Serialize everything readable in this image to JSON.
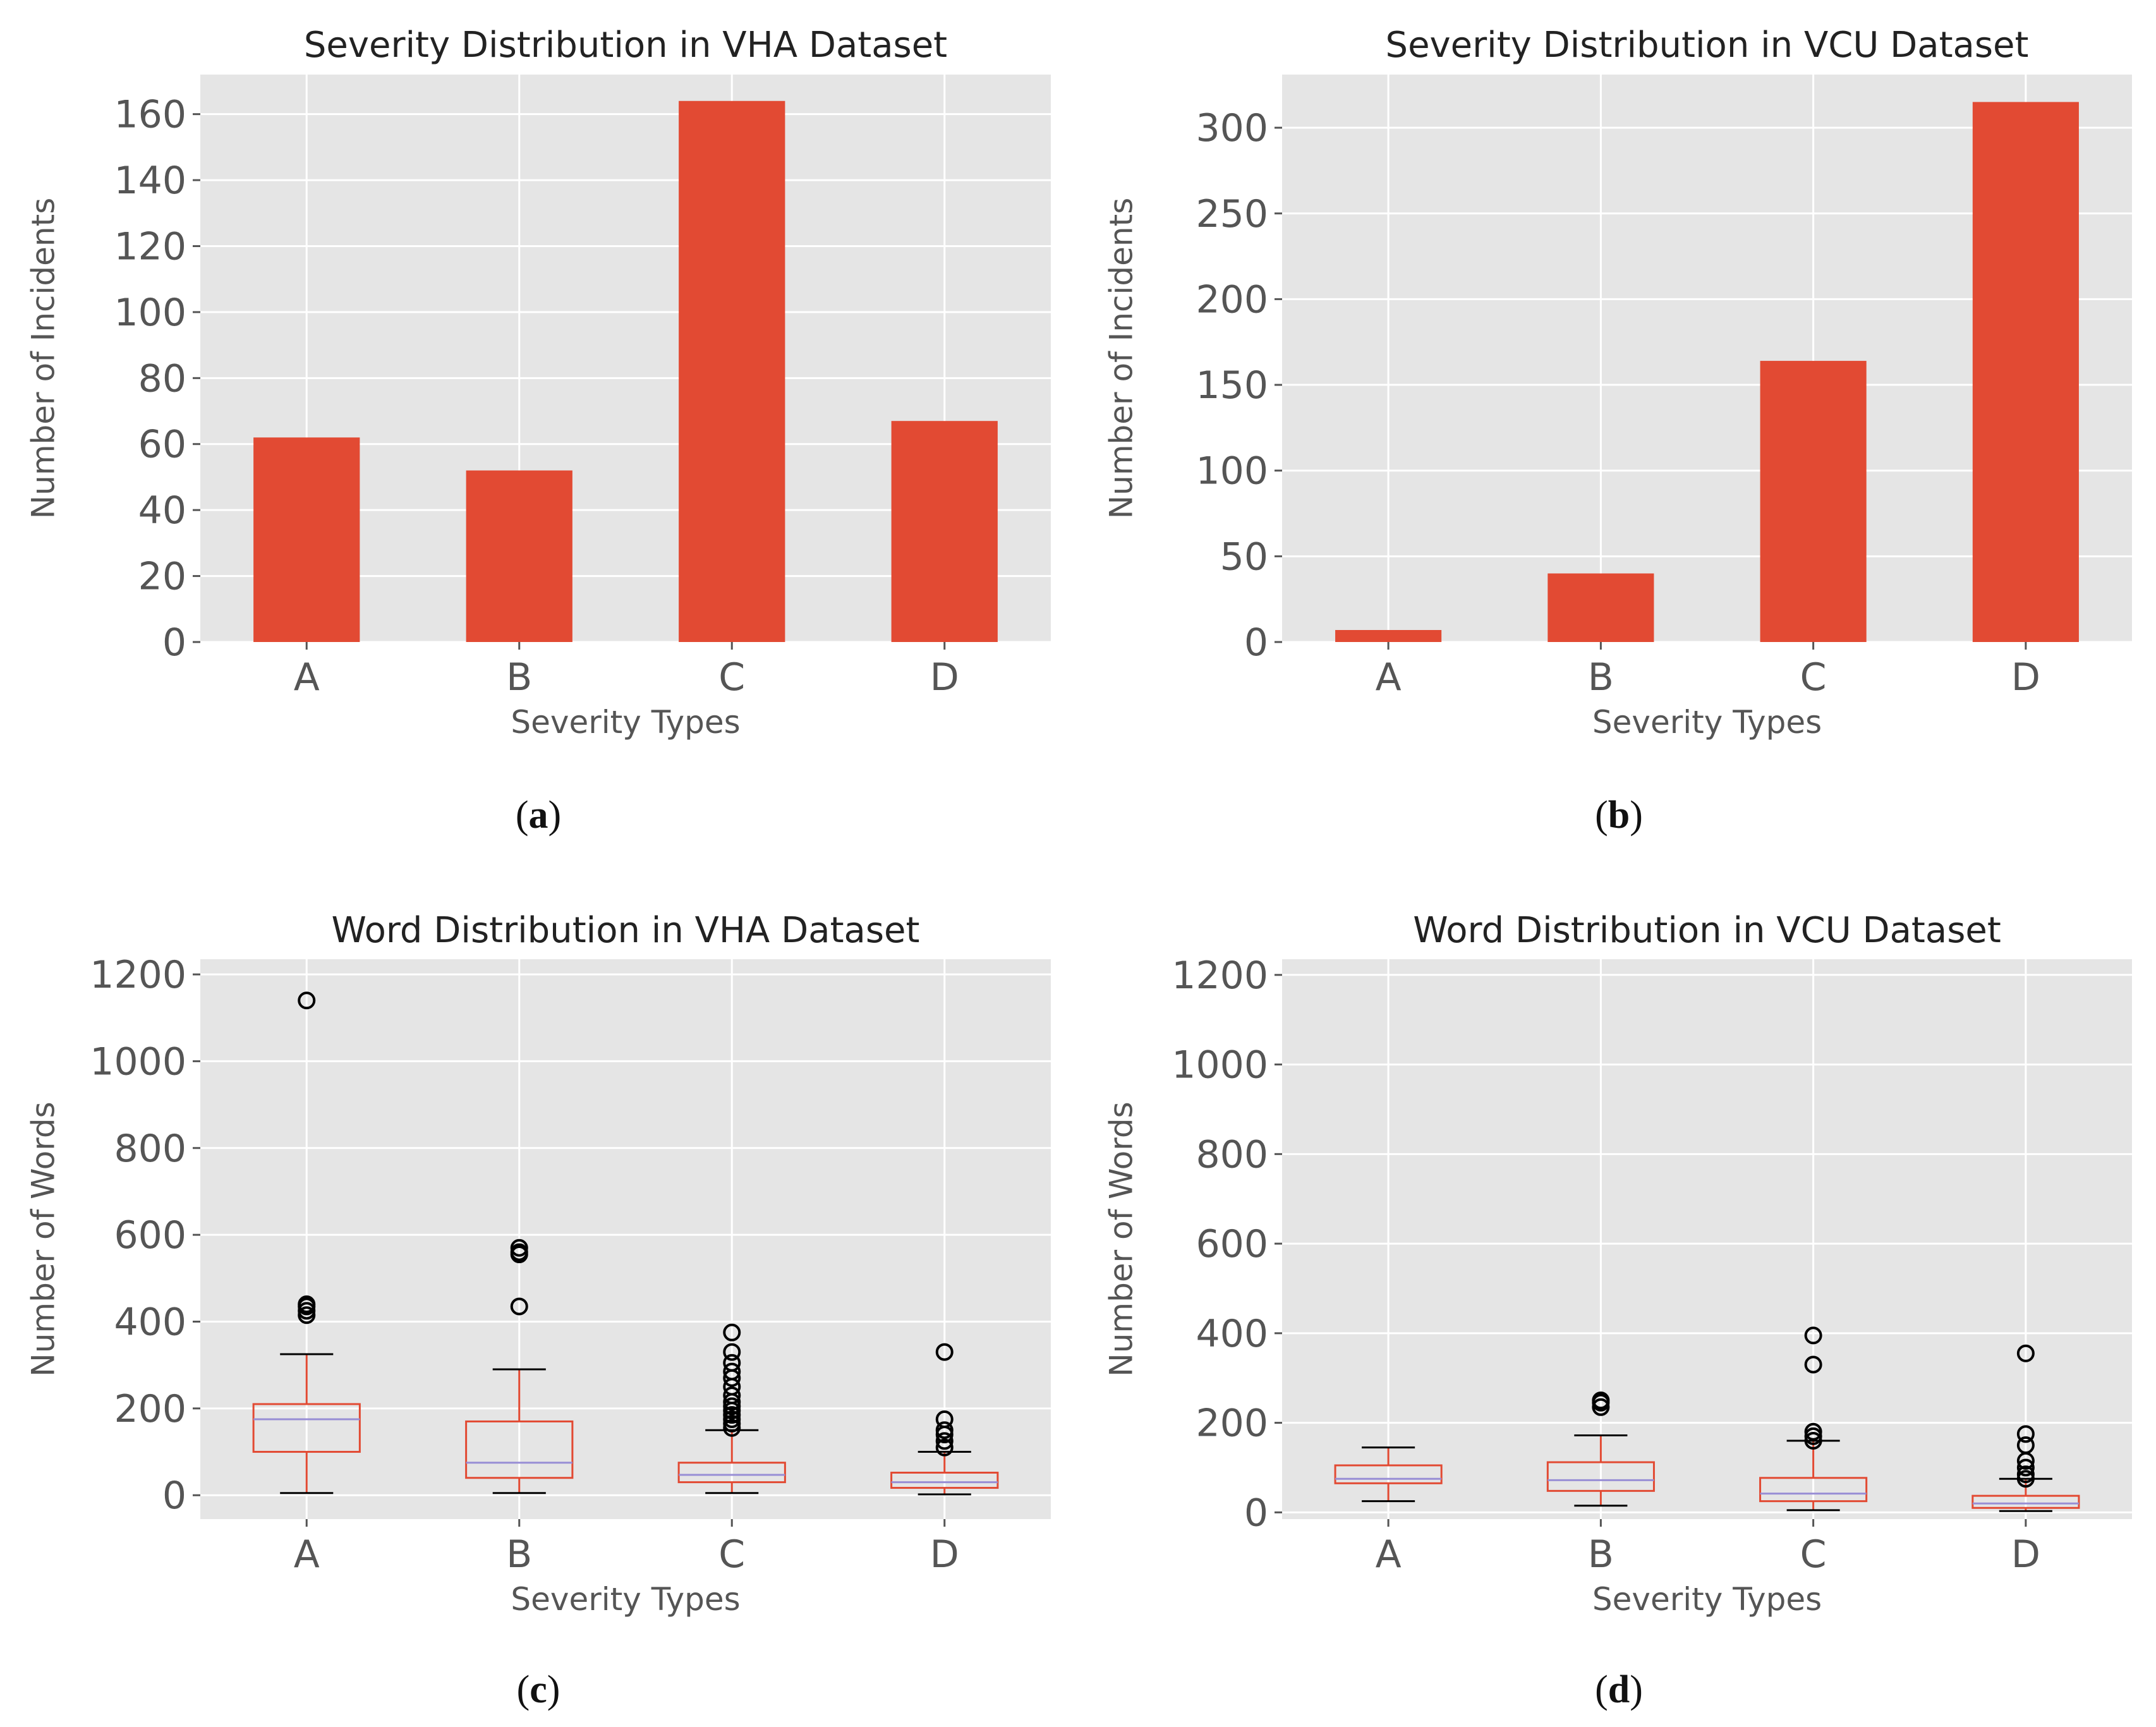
{
  "figure": {
    "captions": [
      {
        "open": "(",
        "letter": "a",
        "close": ")"
      },
      {
        "open": "(",
        "letter": "b",
        "close": ")"
      },
      {
        "open": "(",
        "letter": "c",
        "close": ")"
      },
      {
        "open": "(",
        "letter": "d",
        "close": ")"
      }
    ]
  },
  "colors": {
    "bar": "#E24A33",
    "plot_bg": "#E5E5E5",
    "grid": "#FFFFFF",
    "box": "#E24A33",
    "median": "#8EBA42",
    "median_alt": "#988ED5",
    "whisker": "#000000"
  },
  "chart_data": [
    {
      "type": "bar",
      "title": "Severity Distribution in VHA Dataset",
      "xlabel": "Severity Types",
      "ylabel": "Number of Incidents",
      "categories": [
        "A",
        "B",
        "C",
        "D"
      ],
      "values": [
        62,
        52,
        164,
        67
      ],
      "ylim": [
        0,
        172
      ],
      "yticks": [
        0,
        20,
        40,
        60,
        80,
        100,
        120,
        140,
        160
      ],
      "grid": true
    },
    {
      "type": "bar",
      "title": "Severity Distribution in VCU Dataset",
      "xlabel": "Severity Types",
      "ylabel": "Number of Incidents",
      "categories": [
        "A",
        "B",
        "C",
        "D"
      ],
      "values": [
        7,
        40,
        164,
        315
      ],
      "ylim": [
        0,
        331
      ],
      "yticks": [
        0,
        50,
        100,
        150,
        200,
        250,
        300
      ],
      "grid": true
    },
    {
      "type": "box",
      "title": "Word Distribution in VHA Dataset",
      "xlabel": "Severity Types",
      "ylabel": "Number of Words",
      "categories": [
        "A",
        "B",
        "C",
        "D"
      ],
      "ylim": [
        -55,
        1235
      ],
      "yticks": [
        0,
        200,
        400,
        600,
        800,
        1000,
        1200
      ],
      "grid": true,
      "boxes": [
        {
          "whislo": 5,
          "q1": 100,
          "med": 175,
          "q3": 210,
          "whishi": 325,
          "fliers": [
            415,
            425,
            435,
            440,
            1140
          ]
        },
        {
          "whislo": 5,
          "q1": 40,
          "med": 75,
          "q3": 170,
          "whishi": 290,
          "fliers": [
            435,
            555,
            560,
            570
          ]
        },
        {
          "whislo": 5,
          "q1": 30,
          "med": 47,
          "q3": 75,
          "whishi": 150,
          "fliers": [
            155,
            165,
            175,
            185,
            195,
            205,
            215,
            230,
            250,
            270,
            285,
            305,
            330,
            375
          ]
        },
        {
          "whislo": 2,
          "q1": 17,
          "med": 30,
          "q3": 52,
          "whishi": 100,
          "fliers": [
            110,
            125,
            140,
            150,
            175,
            330
          ]
        }
      ]
    },
    {
      "type": "box",
      "title": "Word Distribution in VCU Dataset",
      "xlabel": "Severity Types",
      "ylabel": "Number of Words",
      "categories": [
        "A",
        "B",
        "C",
        "D"
      ],
      "ylim": [
        -15,
        1235
      ],
      "yticks": [
        0,
        200,
        400,
        600,
        800,
        1000,
        1200
      ],
      "grid": true,
      "boxes": [
        {
          "whislo": 25,
          "q1": 65,
          "med": 75,
          "q3": 105,
          "whishi": 145,
          "fliers": []
        },
        {
          "whislo": 15,
          "q1": 48,
          "med": 72,
          "q3": 112,
          "whishi": 172,
          "fliers": [
            235,
            245,
            250
          ]
        },
        {
          "whislo": 5,
          "q1": 25,
          "med": 42,
          "q3": 77,
          "whishi": 160,
          "fliers": [
            160,
            170,
            180,
            330,
            395
          ]
        },
        {
          "whislo": 3,
          "q1": 10,
          "med": 20,
          "q3": 37,
          "whishi": 75,
          "fliers": [
            75,
            85,
            100,
            115,
            150,
            175,
            355
          ]
        }
      ]
    }
  ]
}
